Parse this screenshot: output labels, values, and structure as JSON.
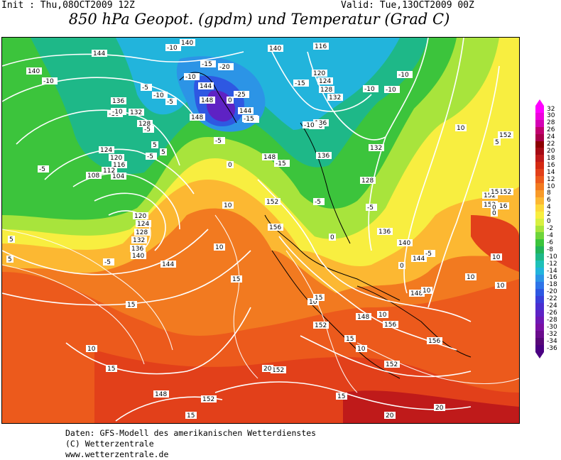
{
  "header": {
    "init": "Init : Thu,08OCT2009 12Z",
    "valid": "Valid: Tue,13OCT2009 00Z",
    "title": "850 hPa Geopot. (gpdm) und Temperatur (Grad C)"
  },
  "legend": {
    "labels": [
      "32",
      "30",
      "28",
      "26",
      "24",
      "22",
      "20",
      "18",
      "16",
      "14",
      "12",
      "10",
      "8",
      "6",
      "4",
      "2",
      "0",
      "-2",
      "-4",
      "-6",
      "-8",
      "-10",
      "-12",
      "-14",
      "-16",
      "-18",
      "-20",
      "-22",
      "-24",
      "-26",
      "-28",
      "-30",
      "-32",
      "-34",
      "-36"
    ],
    "colors": [
      "#ff00ff",
      "#ee00dd",
      "#d400b4",
      "#c0006e",
      "#a8004a",
      "#8b0000",
      "#a50a14",
      "#bf1a1a",
      "#d42a12",
      "#e2401a",
      "#ec5a1c",
      "#f27a20",
      "#f89a28",
      "#fcb832",
      "#fdd83a",
      "#f8ee40",
      "#d8f040",
      "#a8e43c",
      "#6ed43a",
      "#3cc43c",
      "#22b45a",
      "#1eb888",
      "#1ec0b8",
      "#22b4dc",
      "#2c94e6",
      "#2e74e8",
      "#2e58e2",
      "#3a40da",
      "#4a2ed0",
      "#5e22c4",
      "#6e18b4",
      "#7a10a4",
      "#6a0c8c",
      "#580878",
      "#4b0082"
    ]
  },
  "map": {
    "geopotential_labels": [
      {
        "t": "144"
      },
      {
        "t": "140"
      },
      {
        "t": "140"
      },
      {
        "t": "140"
      },
      {
        "t": "136"
      },
      {
        "t": "132"
      },
      {
        "t": "128"
      },
      {
        "t": "124"
      },
      {
        "t": "120"
      },
      {
        "t": "116"
      },
      {
        "t": "112"
      },
      {
        "t": "108"
      },
      {
        "t": "104"
      },
      {
        "t": "120"
      },
      {
        "t": "124"
      },
      {
        "t": "128"
      },
      {
        "t": "132"
      },
      {
        "t": "136"
      },
      {
        "t": "140"
      },
      {
        "t": "144"
      },
      {
        "t": "144"
      },
      {
        "t": "148"
      },
      {
        "t": "148"
      },
      {
        "t": "144"
      },
      {
        "t": "136"
      },
      {
        "t": "148"
      },
      {
        "t": "116"
      },
      {
        "t": "120"
      },
      {
        "t": "124"
      },
      {
        "t": "128"
      },
      {
        "t": "132"
      },
      {
        "t": "136"
      },
      {
        "t": "136"
      },
      {
        "t": "132"
      },
      {
        "t": "128"
      },
      {
        "t": "136"
      },
      {
        "t": "140"
      },
      {
        "t": "144"
      },
      {
        "t": "148"
      },
      {
        "t": "152"
      },
      {
        "t": "156"
      },
      {
        "t": "156"
      },
      {
        "t": "148"
      },
      {
        "t": "152"
      },
      {
        "t": "152"
      },
      {
        "t": "148"
      },
      {
        "t": "152"
      },
      {
        "t": "152"
      },
      {
        "t": "156"
      },
      {
        "t": "152"
      },
      {
        "t": "152"
      },
      {
        "t": "152"
      },
      {
        "t": "152"
      }
    ],
    "temperature_labels": [
      {
        "t": "-10"
      },
      {
        "t": "-10"
      },
      {
        "t": "-10"
      },
      {
        "t": "-15"
      },
      {
        "t": "-20"
      },
      {
        "t": "-10"
      },
      {
        "t": "-5"
      },
      {
        "t": "-10"
      },
      {
        "t": "-5"
      },
      {
        "t": "-10"
      },
      {
        "t": "-5"
      },
      {
        "t": "-5"
      },
      {
        "t": "-5"
      },
      {
        "t": "0"
      },
      {
        "t": "-25"
      },
      {
        "t": "-15"
      },
      {
        "t": "-15"
      },
      {
        "t": "-5"
      },
      {
        "t": "-15"
      },
      {
        "t": "-10"
      },
      {
        "t": "-10"
      },
      {
        "t": "-10"
      },
      {
        "t": "-10"
      },
      {
        "t": "-15"
      },
      {
        "t": "-5"
      },
      {
        "t": "-5"
      },
      {
        "t": "5"
      },
      {
        "t": "5"
      },
      {
        "t": "0"
      },
      {
        "t": "10"
      },
      {
        "t": "10"
      },
      {
        "t": "5"
      },
      {
        "t": "5"
      },
      {
        "t": "-5"
      },
      {
        "t": "0"
      },
      {
        "t": "0"
      },
      {
        "t": "10"
      },
      {
        "t": "15"
      },
      {
        "t": "10"
      },
      {
        "t": "15"
      },
      {
        "t": "10"
      },
      {
        "t": "10"
      },
      {
        "t": "15"
      },
      {
        "t": "20"
      },
      {
        "t": "15"
      },
      {
        "t": "20"
      },
      {
        "t": "20"
      },
      {
        "t": "15"
      },
      {
        "t": "10"
      },
      {
        "t": "10"
      },
      {
        "t": "10"
      },
      {
        "t": "5"
      },
      {
        "t": "0"
      },
      {
        "t": "0"
      },
      {
        "t": "-5"
      },
      {
        "t": "16"
      },
      {
        "t": "15"
      },
      {
        "t": "10"
      },
      {
        "t": "15"
      },
      {
        "t": "10"
      },
      {
        "t": "15"
      }
    ]
  },
  "credits": {
    "line1": "Daten: GFS-Modell des amerikanischen Wetterdienstes",
    "line2": "(C) Wetterzentrale",
    "line3": "www.wetterzentrale.de"
  }
}
